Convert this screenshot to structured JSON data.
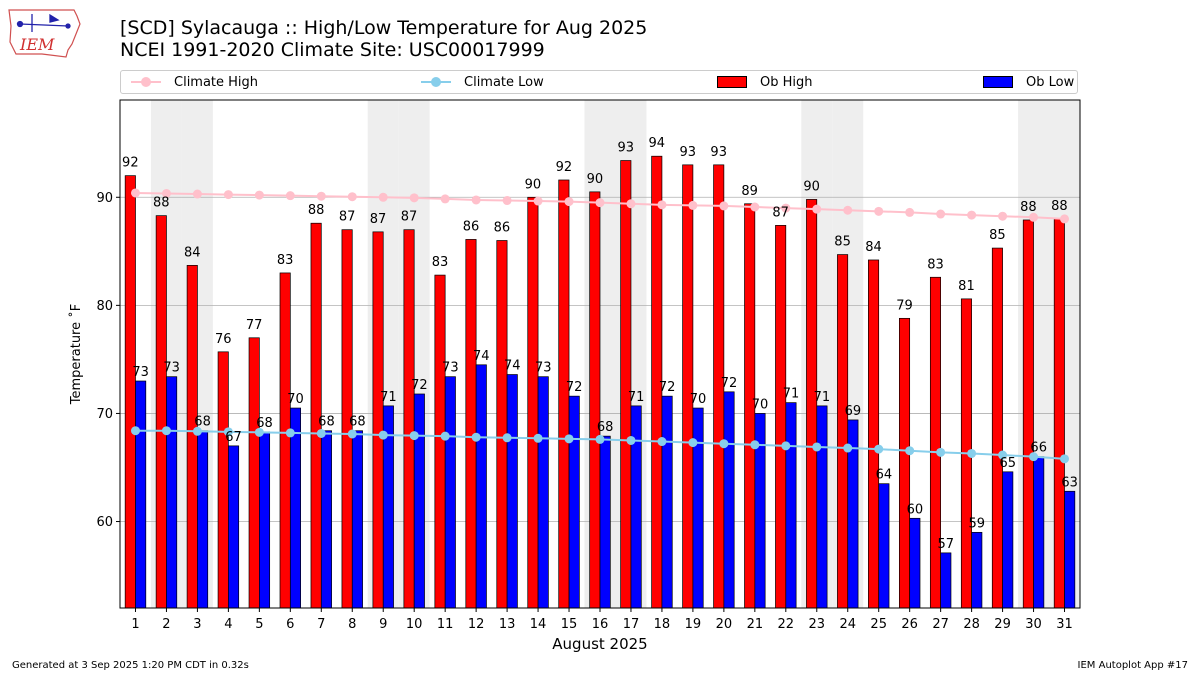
{
  "header": {
    "title_line1": "[SCD] Sylacauga :: High/Low Temperature for Aug 2025",
    "title_line2": "NCEI 1991-2020 Climate Site: USC00017999",
    "logo_text": "IEM"
  },
  "footer": {
    "generated": "Generated at 3 Sep 2025 1:20 PM CDT in 0.32s",
    "app": "IEM Autoplot App #17"
  },
  "colors": {
    "ob_high": "#ff0000",
    "ob_low": "#0000ff",
    "climate_high": "#ffc0cb",
    "climate_low": "#87ceeb",
    "weekend_band": "#eeeeee",
    "grid": "#b0b0b0"
  },
  "legend": {
    "climate_high": "Climate High",
    "climate_low": "Climate Low",
    "ob_high": "Ob High",
    "ob_low": "Ob Low"
  },
  "chart_data": {
    "type": "bar",
    "title": "[SCD] Sylacauga :: High/Low Temperature for Aug 2025",
    "xlabel": "August 2025",
    "ylabel": "Temperature ˚F",
    "ylim": [
      52,
      99
    ],
    "yticks": [
      60,
      70,
      80,
      90
    ],
    "categories": [
      "1",
      "2",
      "3",
      "4",
      "5",
      "6",
      "7",
      "8",
      "9",
      "10",
      "11",
      "12",
      "13",
      "14",
      "15",
      "16",
      "17",
      "18",
      "19",
      "20",
      "21",
      "22",
      "23",
      "24",
      "25",
      "26",
      "27",
      "28",
      "29",
      "30",
      "31"
    ],
    "weekend_days": [
      2,
      3,
      9,
      10,
      16,
      17,
      23,
      24,
      30,
      31
    ],
    "grid": "y",
    "legend_position": "top",
    "series": [
      {
        "name": "Ob High",
        "type": "bar",
        "values": [
          92.0,
          88.3,
          83.7,
          75.7,
          77.0,
          83.0,
          87.6,
          87.0,
          86.8,
          87.0,
          82.8,
          86.1,
          86.0,
          90.0,
          91.6,
          90.5,
          93.4,
          93.8,
          93.0,
          93.0,
          89.4,
          87.4,
          89.8,
          84.7,
          84.2,
          78.8,
          82.6,
          80.6,
          85.3,
          87.9,
          88.0
        ],
        "labels": [
          "92",
          "88",
          "84",
          "76",
          "77",
          "83",
          "88",
          "87",
          "87",
          "87",
          "83",
          "86",
          "86",
          "90",
          "92",
          "90",
          "93",
          "94",
          "93",
          "93",
          "89",
          "87",
          "90",
          "85",
          "84",
          "79",
          "83",
          "81",
          "85",
          "88",
          "88"
        ]
      },
      {
        "name": "Ob Low",
        "type": "bar",
        "values": [
          73.0,
          73.4,
          68.4,
          67.0,
          68.3,
          70.5,
          68.4,
          68.4,
          70.7,
          71.8,
          73.4,
          74.5,
          73.6,
          73.4,
          71.6,
          67.9,
          70.7,
          71.6,
          70.5,
          72.0,
          70.0,
          71.0,
          70.7,
          69.4,
          63.5,
          60.3,
          57.1,
          59.0,
          64.6,
          66.0,
          62.8
        ],
        "labels": [
          "73",
          "73",
          "68",
          "67",
          "68",
          "70",
          "68",
          "68",
          "71",
          "72",
          "73",
          "74",
          "74",
          "73",
          "72",
          "68",
          "71",
          "72",
          "70",
          "72",
          "70",
          "71",
          "71",
          "69",
          "64",
          "60",
          "57",
          "59",
          "65",
          "66",
          "63"
        ]
      },
      {
        "name": "Climate High",
        "type": "line",
        "values": [
          90.4,
          90.35,
          90.3,
          90.25,
          90.2,
          90.15,
          90.1,
          90.05,
          90.0,
          89.95,
          89.85,
          89.75,
          89.7,
          89.65,
          89.6,
          89.5,
          89.4,
          89.3,
          89.25,
          89.2,
          89.1,
          89.0,
          88.9,
          88.8,
          88.7,
          88.6,
          88.45,
          88.35,
          88.25,
          88.15,
          88.0
        ]
      },
      {
        "name": "Climate Low",
        "type": "line",
        "values": [
          68.4,
          68.4,
          68.35,
          68.3,
          68.25,
          68.2,
          68.15,
          68.1,
          68.0,
          67.95,
          67.9,
          67.8,
          67.75,
          67.7,
          67.65,
          67.6,
          67.5,
          67.4,
          67.3,
          67.2,
          67.1,
          67.0,
          66.9,
          66.8,
          66.7,
          66.55,
          66.4,
          66.3,
          66.15,
          66.0,
          65.8
        ]
      }
    ]
  }
}
